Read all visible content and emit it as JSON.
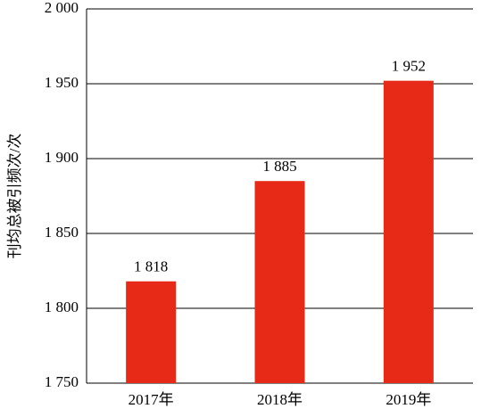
{
  "chart_data": {
    "type": "bar",
    "y_label": "刊均总被引频次/次",
    "categories": [
      "2017年",
      "2018年",
      "2019年"
    ],
    "values": [
      1818,
      1885,
      1952
    ],
    "value_labels": [
      "1 818",
      "1 885",
      "1 952"
    ],
    "color": "#e62a17",
    "ylim": [
      1750,
      2000
    ],
    "yticks": [
      {
        "value": 1750,
        "label": "1 750"
      },
      {
        "value": 1800,
        "label": "1 800"
      },
      {
        "value": 1850,
        "label": "1 850"
      },
      {
        "value": 1900,
        "label": "1 900"
      },
      {
        "value": 1950,
        "label": "1 950"
      },
      {
        "value": 2000,
        "label": "2 000"
      }
    ],
    "grid": true
  }
}
